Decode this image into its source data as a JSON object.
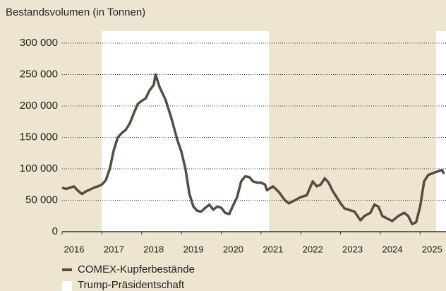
{
  "chart_data": {
    "type": "line",
    "subtitle": "Bestandsvolumen (in Tonnen)",
    "x": [
      2016.0,
      2016.1,
      2016.2,
      2016.3,
      2016.4,
      2016.5,
      2016.6,
      2016.7,
      2016.8,
      2016.9,
      2017.0,
      2017.1,
      2017.2,
      2017.3,
      2017.4,
      2017.5,
      2017.6,
      2017.7,
      2017.8,
      2017.9,
      2018.0,
      2018.1,
      2018.2,
      2018.3,
      2018.35,
      2018.45,
      2018.6,
      2018.75,
      2018.9,
      2019.0,
      2019.1,
      2019.2,
      2019.3,
      2019.4,
      2019.5,
      2019.6,
      2019.7,
      2019.8,
      2019.9,
      2020.0,
      2020.1,
      2020.2,
      2020.3,
      2020.4,
      2020.5,
      2020.6,
      2020.7,
      2020.8,
      2020.9,
      2021.0,
      2021.1,
      2021.15,
      2021.3,
      2021.45,
      2021.6,
      2021.7,
      2021.85,
      2022.0,
      2022.15,
      2022.3,
      2022.4,
      2022.5,
      2022.6,
      2022.7,
      2022.8,
      2022.9,
      2023.0,
      2023.1,
      2023.2,
      2023.35,
      2023.5,
      2023.6,
      2023.75,
      2023.85,
      2023.95,
      2024.05,
      2024.2,
      2024.3,
      2024.45,
      2024.6,
      2024.7,
      2024.8,
      2024.9,
      2025.0,
      2025.1,
      2025.2,
      2025.4,
      2025.55,
      2025.6
    ],
    "series": [
      {
        "name": "COMEX-Kupferbestände",
        "color": "#574b43",
        "values": [
          70000,
          68000,
          70000,
          72000,
          65000,
          60000,
          64000,
          67000,
          70000,
          72000,
          75000,
          82000,
          100000,
          130000,
          150000,
          157000,
          162000,
          172000,
          188000,
          203000,
          208000,
          212000,
          225000,
          233000,
          250000,
          230000,
          210000,
          180000,
          145000,
          127000,
          100000,
          60000,
          40000,
          33000,
          32000,
          38000,
          43000,
          35000,
          40000,
          38000,
          30000,
          28000,
          42000,
          55000,
          80000,
          88000,
          87000,
          80000,
          78000,
          78000,
          75000,
          66000,
          72000,
          63000,
          50000,
          45000,
          50000,
          55000,
          58000,
          80000,
          72000,
          75000,
          85000,
          78000,
          65000,
          55000,
          45000,
          37000,
          35000,
          32000,
          18000,
          25000,
          30000,
          43000,
          40000,
          25000,
          20000,
          17000,
          25000,
          30000,
          25000,
          12000,
          15000,
          40000,
          80000,
          90000,
          95000,
          98000,
          92000
        ]
      }
    ],
    "xlim": [
      2016,
      2025.65
    ],
    "xticks": [
      2016,
      2017,
      2018,
      2019,
      2020,
      2021,
      2022,
      2023,
      2024,
      2025
    ],
    "ylim": [
      0,
      300000
    ],
    "yticks": [
      {
        "value": 0,
        "label": "0"
      },
      {
        "value": 50000,
        "label": "50 000"
      },
      {
        "value": 100000,
        "label": "100 000"
      },
      {
        "value": 150000,
        "label": "150 000"
      },
      {
        "value": 200000,
        "label": "200 000"
      },
      {
        "value": 250000,
        "label": "250 000"
      },
      {
        "value": 300000,
        "label": "300 000"
      }
    ],
    "grid": true,
    "shaded_periods": {
      "name": "Trump-Präsidentschaft",
      "color": "#ffffff",
      "ranges": [
        [
          2017.0,
          2021.2
        ],
        [
          2025.4,
          2025.65
        ]
      ]
    },
    "background": "#ede5d0"
  }
}
